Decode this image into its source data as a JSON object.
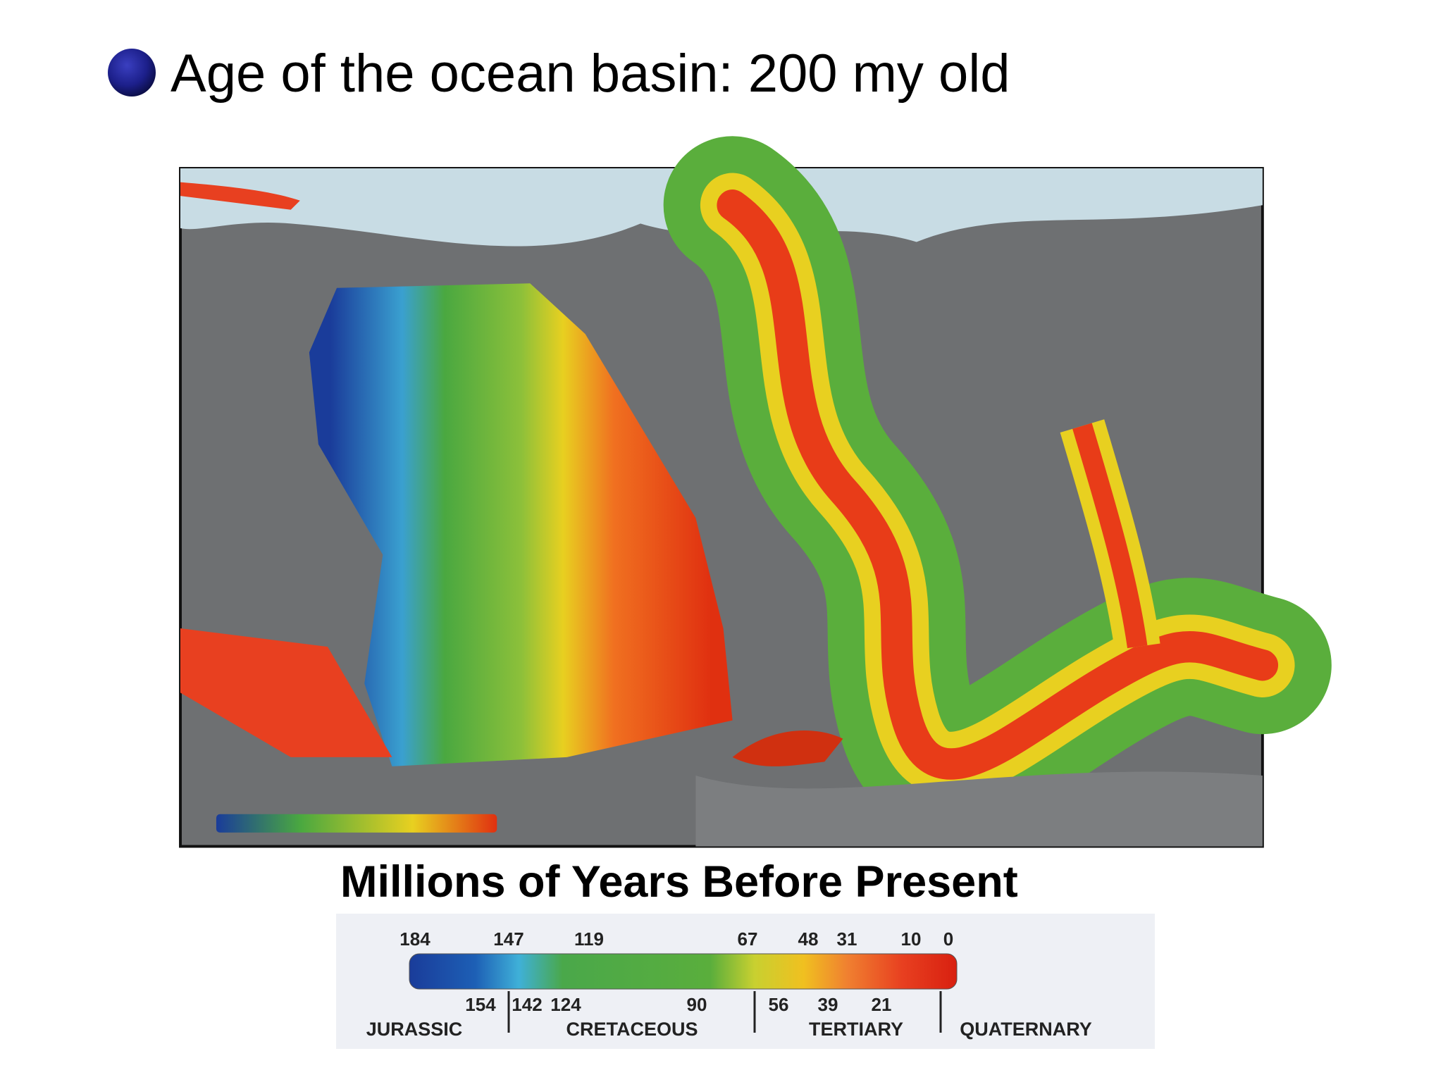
{
  "title": "Age of the ocean basin: 200 my old",
  "legend": {
    "title": "Millions of Years Before Present",
    "top_labels": [
      184,
      147,
      119,
      67,
      48,
      31,
      10,
      0
    ],
    "bottom_labels": [
      154,
      142,
      124,
      90,
      56,
      39,
      21
    ],
    "eras": [
      "JURASSIC",
      "CRETACEOUS",
      "TERTIARY",
      "QUATERNARY"
    ]
  }
}
